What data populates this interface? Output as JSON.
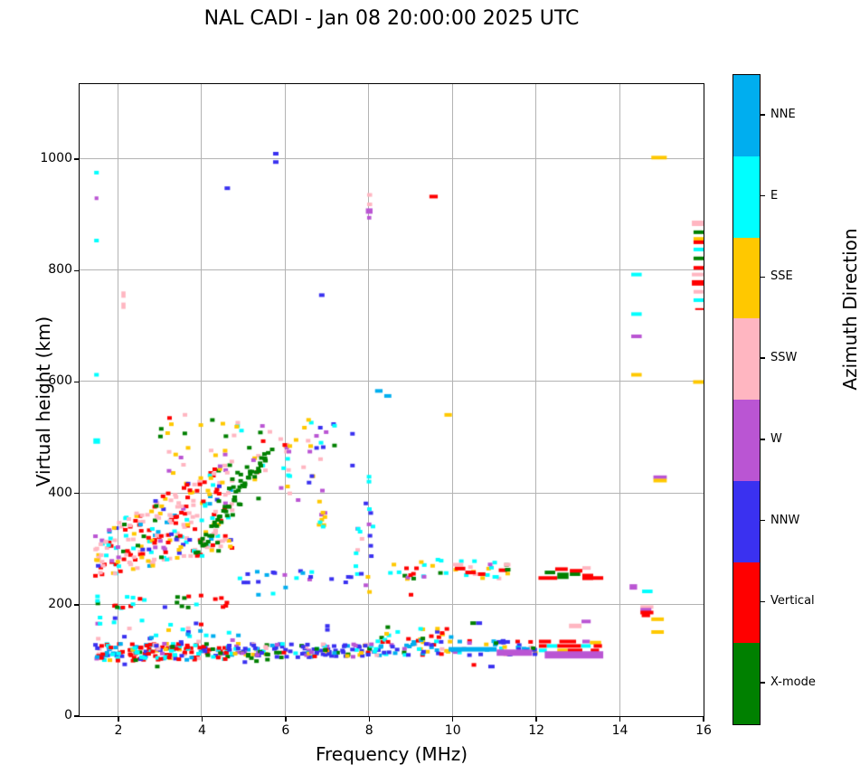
{
  "title": "NAL CADI - Jan 08 20:00:00 2025 UTC",
  "chart_data": {
    "type": "scatter",
    "title": "NAL CADI - Jan 08 20:00:00 2025 UTC",
    "xlabel": "Frequency (MHz)",
    "ylabel": "Virtual height (km)",
    "xlim": [
      1.07,
      16
    ],
    "ylim": [
      0,
      1135
    ],
    "xticks": [
      2,
      4,
      6,
      8,
      10,
      12,
      14,
      16
    ],
    "yticks": [
      0,
      200,
      400,
      600,
      800,
      1000
    ],
    "grid": true,
    "grid_color": "#b3b3b3",
    "legend_position": "right-colorbar",
    "colorbar": {
      "label": "Azimuth Direction",
      "entries": [
        {
          "label": "NNE",
          "code": "N"
        },
        {
          "label": "E",
          "code": "E"
        },
        {
          "label": "SSE",
          "code": "S"
        },
        {
          "label": "SSW",
          "code": "P"
        },
        {
          "label": "W",
          "code": "W"
        },
        {
          "label": "NNW",
          "code": "B"
        },
        {
          "label": "Vertical",
          "code": "V"
        },
        {
          "label": "X-mode",
          "code": "X"
        }
      ]
    },
    "palette": {
      "N": "#00AEEF",
      "E": "#00FFFF",
      "S": "#FFC800",
      "P": "#FFB6C1",
      "W": "#BA55D3",
      "B": "#3A31F0",
      "V": "#FF0000",
      "X": "#008000"
    },
    "code_names": {
      "N": "NNE",
      "E": "E",
      "S": "SSE",
      "P": "SSW",
      "W": "W",
      "B": "NNW",
      "V": "Vertical",
      "X": "X-mode"
    },
    "points": [
      [
        1.56,
        177,
        "E"
      ],
      [
        1.56,
        166,
        "E"
      ],
      [
        1.5,
        207,
        "E"
      ],
      [
        1.5,
        215,
        "E"
      ],
      [
        1.45,
        252,
        "V"
      ],
      [
        1.5,
        280,
        "S"
      ],
      [
        1.45,
        323,
        "W"
      ],
      [
        2.9,
        145,
        "E"
      ],
      [
        3.1,
        130,
        "W"
      ],
      [
        3.5,
        133,
        "B"
      ],
      [
        3.67,
        158,
        "P"
      ],
      [
        4.87,
        145,
        "N"
      ],
      [
        4.1,
        145,
        "E"
      ],
      [
        2.93,
        89,
        "X"
      ],
      [
        2.15,
        93,
        "B"
      ],
      [
        5.0,
        240,
        "B"
      ],
      [
        5.1,
        240,
        "B"
      ],
      [
        5.35,
        218,
        "N"
      ],
      [
        5.7,
        220,
        "E"
      ],
      [
        6.0,
        231,
        "N"
      ],
      [
        5.74,
        257,
        "B"
      ],
      [
        6.6,
        250,
        "B"
      ],
      [
        7.5,
        250,
        "B"
      ],
      [
        7.97,
        250,
        "S"
      ],
      [
        9.0,
        218,
        "V"
      ],
      [
        7.0,
        155,
        "B"
      ],
      [
        7.0,
        162,
        "B"
      ],
      [
        6.25,
        496,
        "S"
      ],
      [
        6.45,
        518,
        "S"
      ],
      [
        6.55,
        532,
        "S"
      ],
      [
        6.83,
        518,
        "B"
      ],
      [
        6.97,
        510,
        "W"
      ],
      [
        6.9,
        483,
        "B"
      ],
      [
        6.58,
        475,
        "W"
      ],
      [
        5.98,
        487,
        "V"
      ],
      [
        6.02,
        475,
        "P"
      ],
      [
        6.08,
        475,
        "W"
      ],
      [
        6.43,
        447,
        "P"
      ],
      [
        6.05,
        462,
        "E"
      ],
      [
        6.1,
        431,
        "E"
      ],
      [
        6.07,
        442,
        "P"
      ],
      [
        6.63,
        431,
        "B"
      ],
      [
        6.88,
        405,
        "W"
      ],
      [
        7.17,
        486,
        "X"
      ],
      [
        7.6,
        507,
        "B"
      ],
      [
        7.6,
        450,
        "B"
      ],
      [
        6.3,
        388,
        "W"
      ],
      [
        6.1,
        400,
        "P"
      ]
    ],
    "segments": [
      [
        1.42,
        1.53,
        976,
        "E",
        4
      ],
      [
        1.43,
        1.52,
        930,
        "W",
        4
      ],
      [
        1.42,
        1.53,
        854,
        "E",
        4
      ],
      [
        1.42,
        1.53,
        613,
        "E",
        4
      ],
      [
        1.4,
        1.56,
        494,
        "E",
        6
      ],
      [
        2.07,
        2.17,
        757,
        "P",
        7
      ],
      [
        2.07,
        2.17,
        737,
        "P",
        7
      ],
      [
        5.7,
        5.83,
        1010,
        "B",
        4
      ],
      [
        5.7,
        5.83,
        995,
        "B",
        4
      ],
      [
        4.54,
        4.67,
        948,
        "B",
        4
      ],
      [
        9.44,
        9.64,
        933,
        "V",
        4
      ],
      [
        7.95,
        8.07,
        936,
        "P",
        4
      ],
      [
        7.95,
        8.07,
        919,
        "P",
        4
      ],
      [
        7.92,
        8.08,
        907,
        "W",
        6
      ],
      [
        7.95,
        8.05,
        895,
        "W",
        4
      ],
      [
        6.8,
        6.93,
        756,
        "B",
        4
      ],
      [
        8.14,
        8.32,
        584,
        "N",
        4
      ],
      [
        8.36,
        8.53,
        575,
        "N",
        4
      ],
      [
        9.8,
        9.98,
        541,
        "S",
        4
      ],
      [
        14.27,
        14.52,
        793,
        "E",
        4
      ],
      [
        14.27,
        14.52,
        722,
        "E",
        4
      ],
      [
        14.27,
        14.52,
        682,
        "W",
        4
      ],
      [
        14.27,
        14.52,
        613,
        "S",
        4
      ],
      [
        15.75,
        16.0,
        600,
        "S",
        4
      ],
      [
        14.75,
        15.12,
        1003,
        "S",
        4
      ],
      [
        14.8,
        15.12,
        429,
        "W",
        4
      ],
      [
        14.8,
        15.12,
        423,
        "S",
        4
      ],
      [
        14.49,
        14.8,
        196,
        "P",
        4
      ],
      [
        14.49,
        14.75,
        191,
        "W",
        4
      ],
      [
        14.49,
        14.8,
        186,
        "V",
        4
      ],
      [
        14.52,
        14.72,
        181,
        "V",
        4
      ],
      [
        14.75,
        15.05,
        174,
        "S",
        4
      ],
      [
        14.75,
        15.05,
        151,
        "S",
        4
      ],
      [
        14.23,
        14.41,
        232,
        "W",
        6
      ],
      [
        14.53,
        14.78,
        224,
        "E",
        4
      ],
      [
        12.78,
        13.08,
        162,
        "P",
        5
      ],
      [
        13.08,
        13.3,
        170,
        "W",
        4
      ],
      [
        11.22,
        11.38,
        272,
        "P",
        4
      ],
      [
        15.72,
        16.0,
        885,
        "P",
        6
      ],
      [
        15.76,
        16.0,
        869,
        "X",
        4
      ],
      [
        15.76,
        16.0,
        857,
        "S",
        4
      ],
      [
        15.76,
        16.0,
        851,
        "V",
        4
      ],
      [
        15.76,
        16.0,
        838,
        "E",
        4
      ],
      [
        15.76,
        16.0,
        822,
        "X",
        4
      ],
      [
        15.76,
        16.0,
        805,
        "V",
        4
      ],
      [
        15.72,
        16.0,
        793,
        "P",
        4
      ],
      [
        15.72,
        16.0,
        778,
        "V",
        6
      ],
      [
        15.76,
        16.0,
        762,
        "P",
        4
      ],
      [
        15.76,
        16.0,
        747,
        "E",
        4
      ],
      [
        15.8,
        16.0,
        731,
        "V",
        2
      ],
      [
        12.05,
        12.5,
        248,
        "V",
        4
      ],
      [
        12.2,
        12.45,
        258,
        "X",
        4
      ],
      [
        12.45,
        12.75,
        264,
        "V",
        4
      ],
      [
        12.5,
        12.77,
        252,
        "X",
        7
      ],
      [
        12.8,
        13.05,
        255,
        "X",
        4
      ],
      [
        12.8,
        13.1,
        261,
        "V",
        4
      ],
      [
        13.1,
        13.3,
        266,
        "P",
        4
      ],
      [
        13.1,
        13.36,
        250,
        "V",
        7
      ],
      [
        13.36,
        13.6,
        248,
        "V",
        4
      ],
      [
        12.06,
        12.35,
        134,
        "V",
        4
      ],
      [
        12.55,
        12.95,
        134,
        "V",
        4
      ],
      [
        13.1,
        13.28,
        134,
        "W",
        4
      ],
      [
        13.28,
        13.55,
        132,
        "S",
        4
      ],
      [
        12.06,
        12.25,
        126,
        "V",
        4
      ],
      [
        12.25,
        12.5,
        126,
        "E",
        4
      ],
      [
        12.5,
        13.07,
        126,
        "V",
        4
      ],
      [
        13.07,
        13.3,
        126,
        "E",
        4
      ],
      [
        13.37,
        13.57,
        126,
        "V",
        4
      ],
      [
        12.06,
        12.25,
        118,
        "E",
        4
      ],
      [
        12.5,
        12.75,
        118,
        "S",
        4
      ],
      [
        12.75,
        13.1,
        118,
        "V",
        4
      ],
      [
        13.3,
        13.5,
        118,
        "V",
        4
      ],
      [
        12.2,
        13.6,
        110,
        "W",
        8
      ],
      [
        9.9,
        11.05,
        120,
        "N",
        5
      ],
      [
        11.05,
        11.9,
        114,
        "W",
        7
      ],
      [
        10.42,
        10.56,
        167,
        "X",
        4
      ],
      [
        10.56,
        10.7,
        167,
        "B",
        4
      ],
      [
        10.45,
        10.56,
        92,
        "V",
        4
      ],
      [
        10.85,
        11.0,
        89,
        "B",
        4
      ],
      [
        10.0,
        10.25,
        272,
        "P",
        4
      ],
      [
        10.05,
        10.3,
        265,
        "V",
        4
      ],
      [
        10.3,
        10.55,
        258,
        "V",
        4
      ],
      [
        10.6,
        10.78,
        255,
        "V",
        4
      ],
      [
        10.95,
        11.1,
        250,
        "E",
        4
      ],
      [
        11.1,
        11.3,
        262,
        "V",
        4
      ],
      [
        11.25,
        11.38,
        263,
        "X",
        4
      ]
    ],
    "noise_bands": [
      {
        "name": "e-layer-left",
        "f0": 1.45,
        "f1": 4.65,
        "h0a": 98,
        "h0b": 130,
        "h1a": 102,
        "h1b": 130,
        "n": 175,
        "c": "VVVVVVVEEEEEBBBPPWNNSX",
        "seed": 11
      },
      {
        "name": "e-layer-mid",
        "f0": 4.65,
        "f1": 8.05,
        "h0a": 104,
        "h0b": 130,
        "h1a": 106,
        "h1b": 130,
        "n": 125,
        "c": "BBBBBBBBWWWEEXXNNSSVP",
        "seed": 22
      },
      {
        "name": "e-layer-right",
        "f0": 8.05,
        "f1": 12.0,
        "h0a": 108,
        "h0b": 134,
        "h1a": 110,
        "h1b": 136,
        "n": 95,
        "c": "BBBBBEEENNNNSSVVWPX",
        "seed": 33
      },
      {
        "name": "above-e-left",
        "f0": 1.5,
        "f1": 4.8,
        "h0a": 132,
        "h0b": 178,
        "h1a": 132,
        "h1b": 165,
        "n": 22,
        "c": "EEEPWBNSV",
        "seed": 44
      },
      {
        "name": "spread-f-main",
        "f0": 1.45,
        "f1": 4.75,
        "h0a": 245,
        "h0b": 325,
        "h1a": 300,
        "h1b": 468,
        "n": 285,
        "c": "PPPPPPPVVVVVSSSEEEXWNB",
        "seed": 55
      },
      {
        "name": "spread-f-upper",
        "f0": 3.0,
        "f1": 6.1,
        "h0a": 430,
        "h0b": 548,
        "h1a": 400,
        "h1b": 520,
        "n": 48,
        "c": "SSSSEEEPPPXXWWNV",
        "seed": 66
      },
      {
        "name": "x-mode-trace",
        "f0": 3.85,
        "f1": 5.65,
        "h0a": 281,
        "h0b": 303,
        "h1a": 468,
        "h1b": 492,
        "n": 50,
        "c": "X",
        "seed": 77
      },
      {
        "name": "x-mode-scatter",
        "f0": 4.4,
        "f1": 5.45,
        "h0a": 345,
        "h0b": 430,
        "h1a": 390,
        "h1b": 470,
        "n": 14,
        "c": "X",
        "seed": 88
      },
      {
        "name": "band-200km",
        "f0": 1.5,
        "f1": 4.65,
        "h0a": 192,
        "h0b": 217,
        "h1a": 195,
        "h1b": 217,
        "n": 26,
        "c": "VVVVVXXEEPB",
        "seed": 99
      },
      {
        "name": "mid-250km",
        "f0": 4.9,
        "f1": 7.65,
        "h0a": 236,
        "h0b": 262,
        "h1a": 240,
        "h1b": 262,
        "n": 15,
        "c": "BBBBBNNEEW",
        "seed": 111
      },
      {
        "name": "right-250km",
        "f0": 8.5,
        "f1": 11.35,
        "h0a": 243,
        "h0b": 281,
        "h1a": 245,
        "h1b": 281,
        "n": 36,
        "c": "SSSEEEVVVXXNPW",
        "seed": 122
      },
      {
        "name": "cluster-6.5mhz",
        "f0": 5.95,
        "f1": 7.3,
        "h0a": 405,
        "h0b": 535,
        "h1a": 420,
        "h1b": 535,
        "n": 14,
        "c": "SSWWBBPPEE",
        "seed": 133
      },
      {
        "name": "column-6.85mhz",
        "f0": 6.8,
        "f1": 6.97,
        "h0a": 328,
        "h0b": 392,
        "h1a": 328,
        "h1b": 392,
        "n": 10,
        "c": "WWSSSSEE",
        "seed": 144
      },
      {
        "name": "column-7.75mhz",
        "f0": 7.68,
        "f1": 7.86,
        "h0a": 252,
        "h0b": 348,
        "h1a": 252,
        "h1b": 348,
        "n": 9,
        "c": "EEEBBPW",
        "seed": 155
      },
      {
        "name": "column-8mhz",
        "f0": 7.92,
        "f1": 8.1,
        "h0a": 205,
        "h0b": 465,
        "h1a": 205,
        "h1b": 465,
        "n": 12,
        "c": "EEBBNSWP",
        "seed": 166
      },
      {
        "name": "rows-above-right-e",
        "f0": 8.2,
        "f1": 10.0,
        "h0a": 133,
        "h0b": 160,
        "h1a": 133,
        "h1b": 160,
        "n": 24,
        "c": "SSSEEEVVXNB",
        "seed": 177
      },
      {
        "name": "green-bottom-mid",
        "f0": 4.95,
        "f1": 5.72,
        "h0a": 95,
        "h0b": 114,
        "h1a": 95,
        "h1b": 114,
        "n": 12,
        "c": "XXXXXBBW",
        "seed": 188
      }
    ]
  }
}
